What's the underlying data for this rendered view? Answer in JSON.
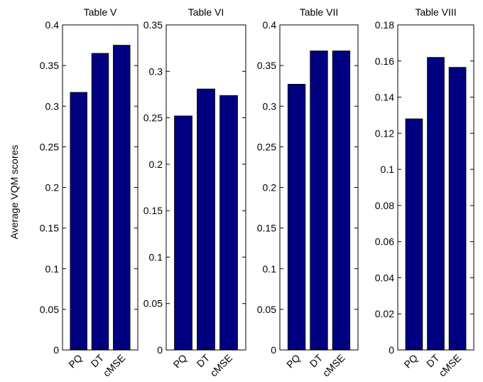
{
  "figure": {
    "ylabel": "Average VQM scores"
  },
  "chart_data": [
    {
      "type": "bar",
      "title": "Table V",
      "categories": [
        "PQ",
        "DT",
        "cMSE"
      ],
      "values": [
        0.317,
        0.365,
        0.375
      ],
      "ylim": [
        0,
        0.4
      ],
      "yticks": [
        0,
        0.05,
        0.1,
        0.15,
        0.2,
        0.25,
        0.3,
        0.35,
        0.4
      ],
      "ytick_labels": [
        "0",
        "0.05",
        "0.1",
        "0.15",
        "0.2",
        "0.25",
        "0.3",
        "0.35",
        "0.4"
      ],
      "bar_color": "#000080"
    },
    {
      "type": "bar",
      "title": "Table VI",
      "categories": [
        "PQ",
        "DT",
        "cMSE"
      ],
      "values": [
        0.252,
        0.281,
        0.274
      ],
      "ylim": [
        0,
        0.35
      ],
      "yticks": [
        0,
        0.05,
        0.1,
        0.15,
        0.2,
        0.25,
        0.3,
        0.35
      ],
      "ytick_labels": [
        "0",
        "0.05",
        "0.1",
        "0.15",
        "0.2",
        "0.25",
        "0.3",
        "0.35"
      ],
      "bar_color": "#000080"
    },
    {
      "type": "bar",
      "title": "Table VII",
      "categories": [
        "PQ",
        "DT",
        "cMSE"
      ],
      "values": [
        0.327,
        0.368,
        0.368
      ],
      "ylim": [
        0,
        0.4
      ],
      "yticks": [
        0,
        0.05,
        0.1,
        0.15,
        0.2,
        0.25,
        0.3,
        0.35,
        0.4
      ],
      "ytick_labels": [
        "0",
        "0.05",
        "0.1",
        "0.15",
        "0.2",
        "0.25",
        "0.3",
        "0.35",
        "0.4"
      ],
      "bar_color": "#000080"
    },
    {
      "type": "bar",
      "title": "Table VIII",
      "categories": [
        "PQ",
        "DT",
        "cMSE"
      ],
      "values": [
        0.128,
        0.162,
        0.1565
      ],
      "ylim": [
        0,
        0.18
      ],
      "yticks": [
        0,
        0.02,
        0.04,
        0.06,
        0.08,
        0.1,
        0.12,
        0.14,
        0.16,
        0.18
      ],
      "ytick_labels": [
        "0",
        "0.02",
        "0.04",
        "0.06",
        "0.08",
        "0.1",
        "0.12",
        "0.14",
        "0.16",
        "0.18"
      ],
      "bar_color": "#000080"
    }
  ]
}
